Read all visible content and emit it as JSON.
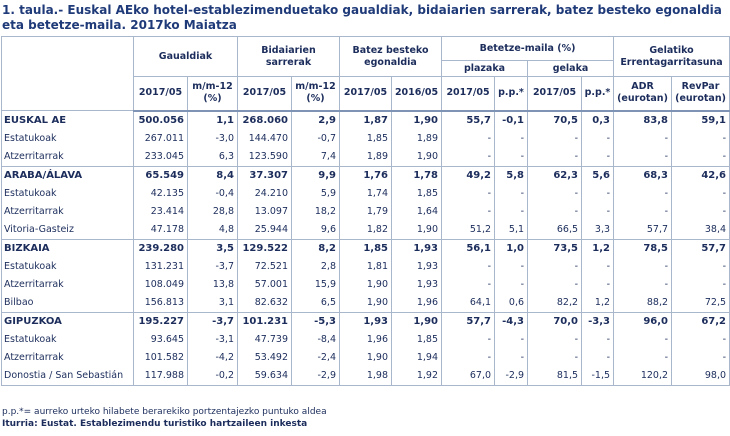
{
  "title": "1. taula.- Euskal AEko hotel-establezimenduetako gaualdiak, bidaiarien sarrerak, batez besteko egonaldia eta betetze-maila. 2017ko Maiatza",
  "table": {
    "header": {
      "groups": [
        "Gaualdiak",
        "Bidaiarien sarrerak",
        "Batez besteko egonaldia",
        "Betetze-maila (%)",
        "Gelatiko Errentagarritasuna"
      ],
      "subgroups": [
        "plazaka",
        "gelaka"
      ],
      "columns": [
        "2017/05",
        "m/m-12 (%)",
        "2017/05",
        "m/m-12 (%)",
        "2017/05",
        "2016/05",
        "2017/05",
        "p.p.*",
        "2017/05",
        "p.p.*",
        "ADR (eurotan)",
        "RevPar (eurotan)"
      ]
    },
    "groups": [
      {
        "label": "EUSKAL AE",
        "values": [
          "500.056",
          "1,1",
          "268.060",
          "2,9",
          "1,87",
          "1,90",
          "55,7",
          "-0,1",
          "70,5",
          "0,3",
          "83,8",
          "59,1"
        ],
        "rows": [
          {
            "label": "Estatukoak",
            "values": [
              "267.011",
              "-3,0",
              "144.470",
              "-0,7",
              "1,85",
              "1,89",
              "-",
              "-",
              "-",
              "-",
              "-",
              "-"
            ]
          },
          {
            "label": "Atzerritarrak",
            "values": [
              "233.045",
              "6,3",
              "123.590",
              "7,4",
              "1,89",
              "1,90",
              "-",
              "-",
              "-",
              "-",
              "-",
              "-"
            ]
          }
        ]
      },
      {
        "label": "ARABA/ÁLAVA",
        "values": [
          "65.549",
          "8,4",
          "37.307",
          "9,9",
          "1,76",
          "1,78",
          "49,2",
          "5,8",
          "62,3",
          "5,6",
          "68,3",
          "42,6"
        ],
        "rows": [
          {
            "label": "Estatukoak",
            "values": [
              "42.135",
              "-0,4",
              "24.210",
              "5,9",
              "1,74",
              "1,85",
              "-",
              "-",
              "-",
              "-",
              "-",
              "-"
            ]
          },
          {
            "label": "Atzerritarrak",
            "values": [
              "23.414",
              "28,8",
              "13.097",
              "18,2",
              "1,79",
              "1,64",
              "-",
              "-",
              "-",
              "-",
              "-",
              "-"
            ]
          },
          {
            "label": "Vitoria-Gasteiz",
            "values": [
              "47.178",
              "4,8",
              "25.944",
              "9,6",
              "1,82",
              "1,90",
              "51,2",
              "5,1",
              "66,5",
              "3,3",
              "57,7",
              "38,4"
            ]
          }
        ]
      },
      {
        "label": "BIZKAIA",
        "values": [
          "239.280",
          "3,5",
          "129.522",
          "8,2",
          "1,85",
          "1,93",
          "56,1",
          "1,0",
          "73,5",
          "1,2",
          "78,5",
          "57,7"
        ],
        "rows": [
          {
            "label": "Estatukoak",
            "values": [
              "131.231",
              "-3,7",
              "72.521",
              "2,8",
              "1,81",
              "1,93",
              "-",
              "-",
              "-",
              "-",
              "-",
              "-"
            ]
          },
          {
            "label": "Atzerritarrak",
            "values": [
              "108.049",
              "13,8",
              "57.001",
              "15,9",
              "1,90",
              "1,93",
              "-",
              "-",
              "-",
              "-",
              "-",
              "-"
            ]
          },
          {
            "label": "Bilbao",
            "values": [
              "156.813",
              "3,1",
              "82.632",
              "6,5",
              "1,90",
              "1,96",
              "64,1",
              "0,6",
              "82,2",
              "1,2",
              "88,2",
              "72,5"
            ]
          }
        ]
      },
      {
        "label": "GIPUZKOA",
        "values": [
          "195.227",
          "-3,7",
          "101.231",
          "-5,3",
          "1,93",
          "1,90",
          "57,7",
          "-4,3",
          "70,0",
          "-3,3",
          "96,0",
          "67,2"
        ],
        "rows": [
          {
            "label": "Estatukoak",
            "values": [
              "93.645",
              "-3,1",
              "47.739",
              "-8,4",
              "1,96",
              "1,85",
              "-",
              "-",
              "-",
              "-",
              "-",
              "-"
            ]
          },
          {
            "label": "Atzerritarrak",
            "values": [
              "101.582",
              "-4,2",
              "53.492",
              "-2,4",
              "1,90",
              "1,94",
              "-",
              "-",
              "-",
              "-",
              "-",
              "-"
            ]
          },
          {
            "label": "Donostia / San Sebastián",
            "values": [
              "117.988",
              "-0,2",
              "59.634",
              "-2,9",
              "1,98",
              "1,92",
              "67,0",
              "-2,9",
              "81,5",
              "-1,5",
              "120,2",
              "98,0"
            ]
          }
        ]
      }
    ]
  },
  "notes": [
    "p.p.*= aurreko urteko hilabete berarekiko portzentajezko puntuko aldea",
    "Iturria: Eustat. Establezimendu turistiko hartzaileen inkesta"
  ]
}
